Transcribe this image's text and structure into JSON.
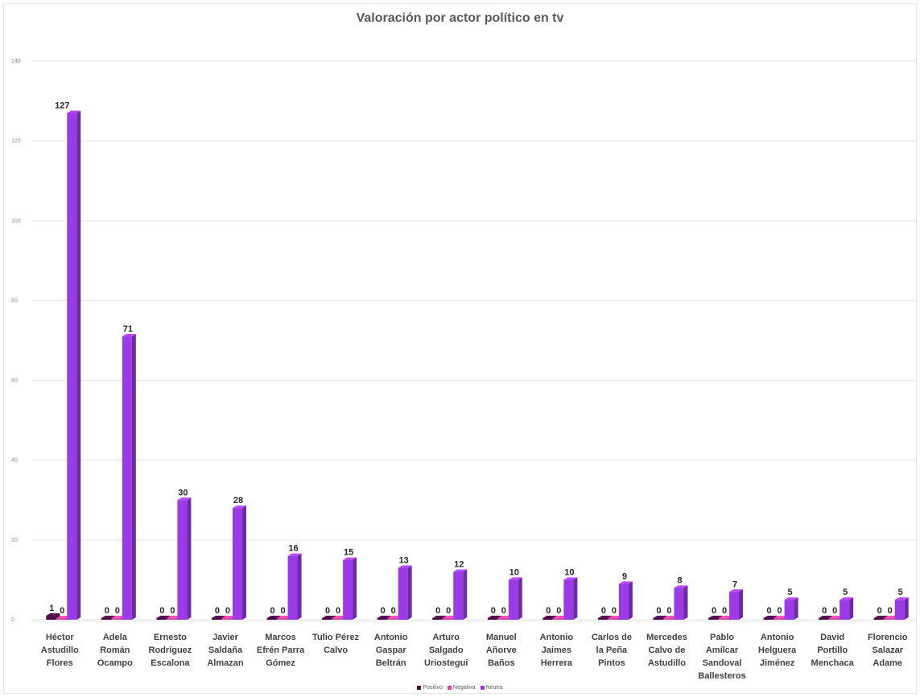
{
  "chart_data": {
    "type": "bar",
    "title": "Valoración por actor político en tv",
    "categories": [
      "Héctor Astudillo Flores",
      "Adela Román Ocampo",
      "Ernesto Rodríguez Escalona",
      "Javier Saldaña Almazan",
      "Marcos Efrén Parra Gómez",
      "Tulio Pérez Calvo",
      "Antonio Gaspar Beltrán",
      "Arturo Salgado Uriostegui",
      "Manuel Añorve Baños",
      "Antonio Jaimes Herrera",
      "Carlos de la Peña Pintos",
      "Mercedes Calvo de Astudillo",
      "Pablo Amílcar Sandoval Ballesteros",
      "Antonio Helguera Jiménez",
      "David Portillo Menchaca",
      "Florencio Salazar Adame"
    ],
    "category_lines": [
      [
        "Héctor",
        "Astudillo",
        "Flores"
      ],
      [
        "Adela",
        "Román",
        "Ocampo"
      ],
      [
        "Ernesto",
        "Rodríguez",
        "Escalona"
      ],
      [
        "Javier",
        "Saldaña",
        "Almazan"
      ],
      [
        "Marcos",
        "Efrén Parra",
        "Gómez"
      ],
      [
        "Tulio Pérez",
        "Calvo"
      ],
      [
        "Antonio",
        "Gaspar",
        "Beltrán"
      ],
      [
        "Arturo",
        "Salgado",
        "Uriostegui"
      ],
      [
        "Manuel",
        "Añorve",
        "Baños"
      ],
      [
        "Antonio",
        "Jaimes",
        "Herrera"
      ],
      [
        "Carlos de",
        "la Peña",
        "Pintos"
      ],
      [
        "Mercedes",
        "Calvo de",
        "Astudillo"
      ],
      [
        "Pablo",
        "Amílcar",
        "Sandoval",
        "Ballesteros"
      ],
      [
        "Antonio",
        "Helguera",
        "Jiménez"
      ],
      [
        "David",
        "Portillo",
        "Menchaca"
      ],
      [
        "Florencio",
        "Salazar",
        "Adame"
      ]
    ],
    "series": [
      {
        "name": "Positivo",
        "color": "#4a0a45",
        "values": [
          1,
          0,
          0,
          0,
          0,
          0,
          0,
          0,
          0,
          0,
          0,
          0,
          0,
          0,
          0,
          0
        ]
      },
      {
        "name": "Negativa",
        "color": "#e040a0",
        "values": [
          0,
          0,
          0,
          0,
          0,
          0,
          0,
          0,
          0,
          0,
          0,
          0,
          0,
          0,
          0,
          0
        ]
      },
      {
        "name": "Neutra",
        "color": "#9b3be8",
        "values": [
          127,
          71,
          30,
          28,
          16,
          15,
          13,
          12,
          10,
          10,
          9,
          8,
          7,
          5,
          5,
          5
        ]
      }
    ],
    "data_labels": [
      [
        "1",
        "0",
        ""
      ],
      [
        "0",
        "0",
        "71"
      ],
      [
        "0",
        "0",
        "30"
      ],
      [
        "0",
        "0",
        "28"
      ],
      [
        "0",
        "0",
        "16"
      ],
      [
        "0",
        "0",
        "15"
      ],
      [
        "0",
        "0",
        "13"
      ],
      [
        "0",
        "0",
        "12"
      ],
      [
        "0",
        "0",
        "10"
      ],
      [
        "0",
        "0",
        "10"
      ],
      [
        "0",
        "0",
        "9"
      ],
      [
        "0",
        "0",
        "8"
      ],
      [
        "0",
        "0",
        "7"
      ],
      [
        "0",
        "0",
        "5"
      ],
      [
        "0",
        "0",
        "5"
      ],
      [
        "0",
        "0",
        "5"
      ]
    ],
    "top_label": "127",
    "ylim": [
      0,
      140
    ],
    "yticks": [
      0,
      20,
      40,
      60,
      80,
      100,
      120,
      140
    ],
    "grid": true,
    "legend_position": "bottom",
    "xlabel": "",
    "ylabel": ""
  }
}
